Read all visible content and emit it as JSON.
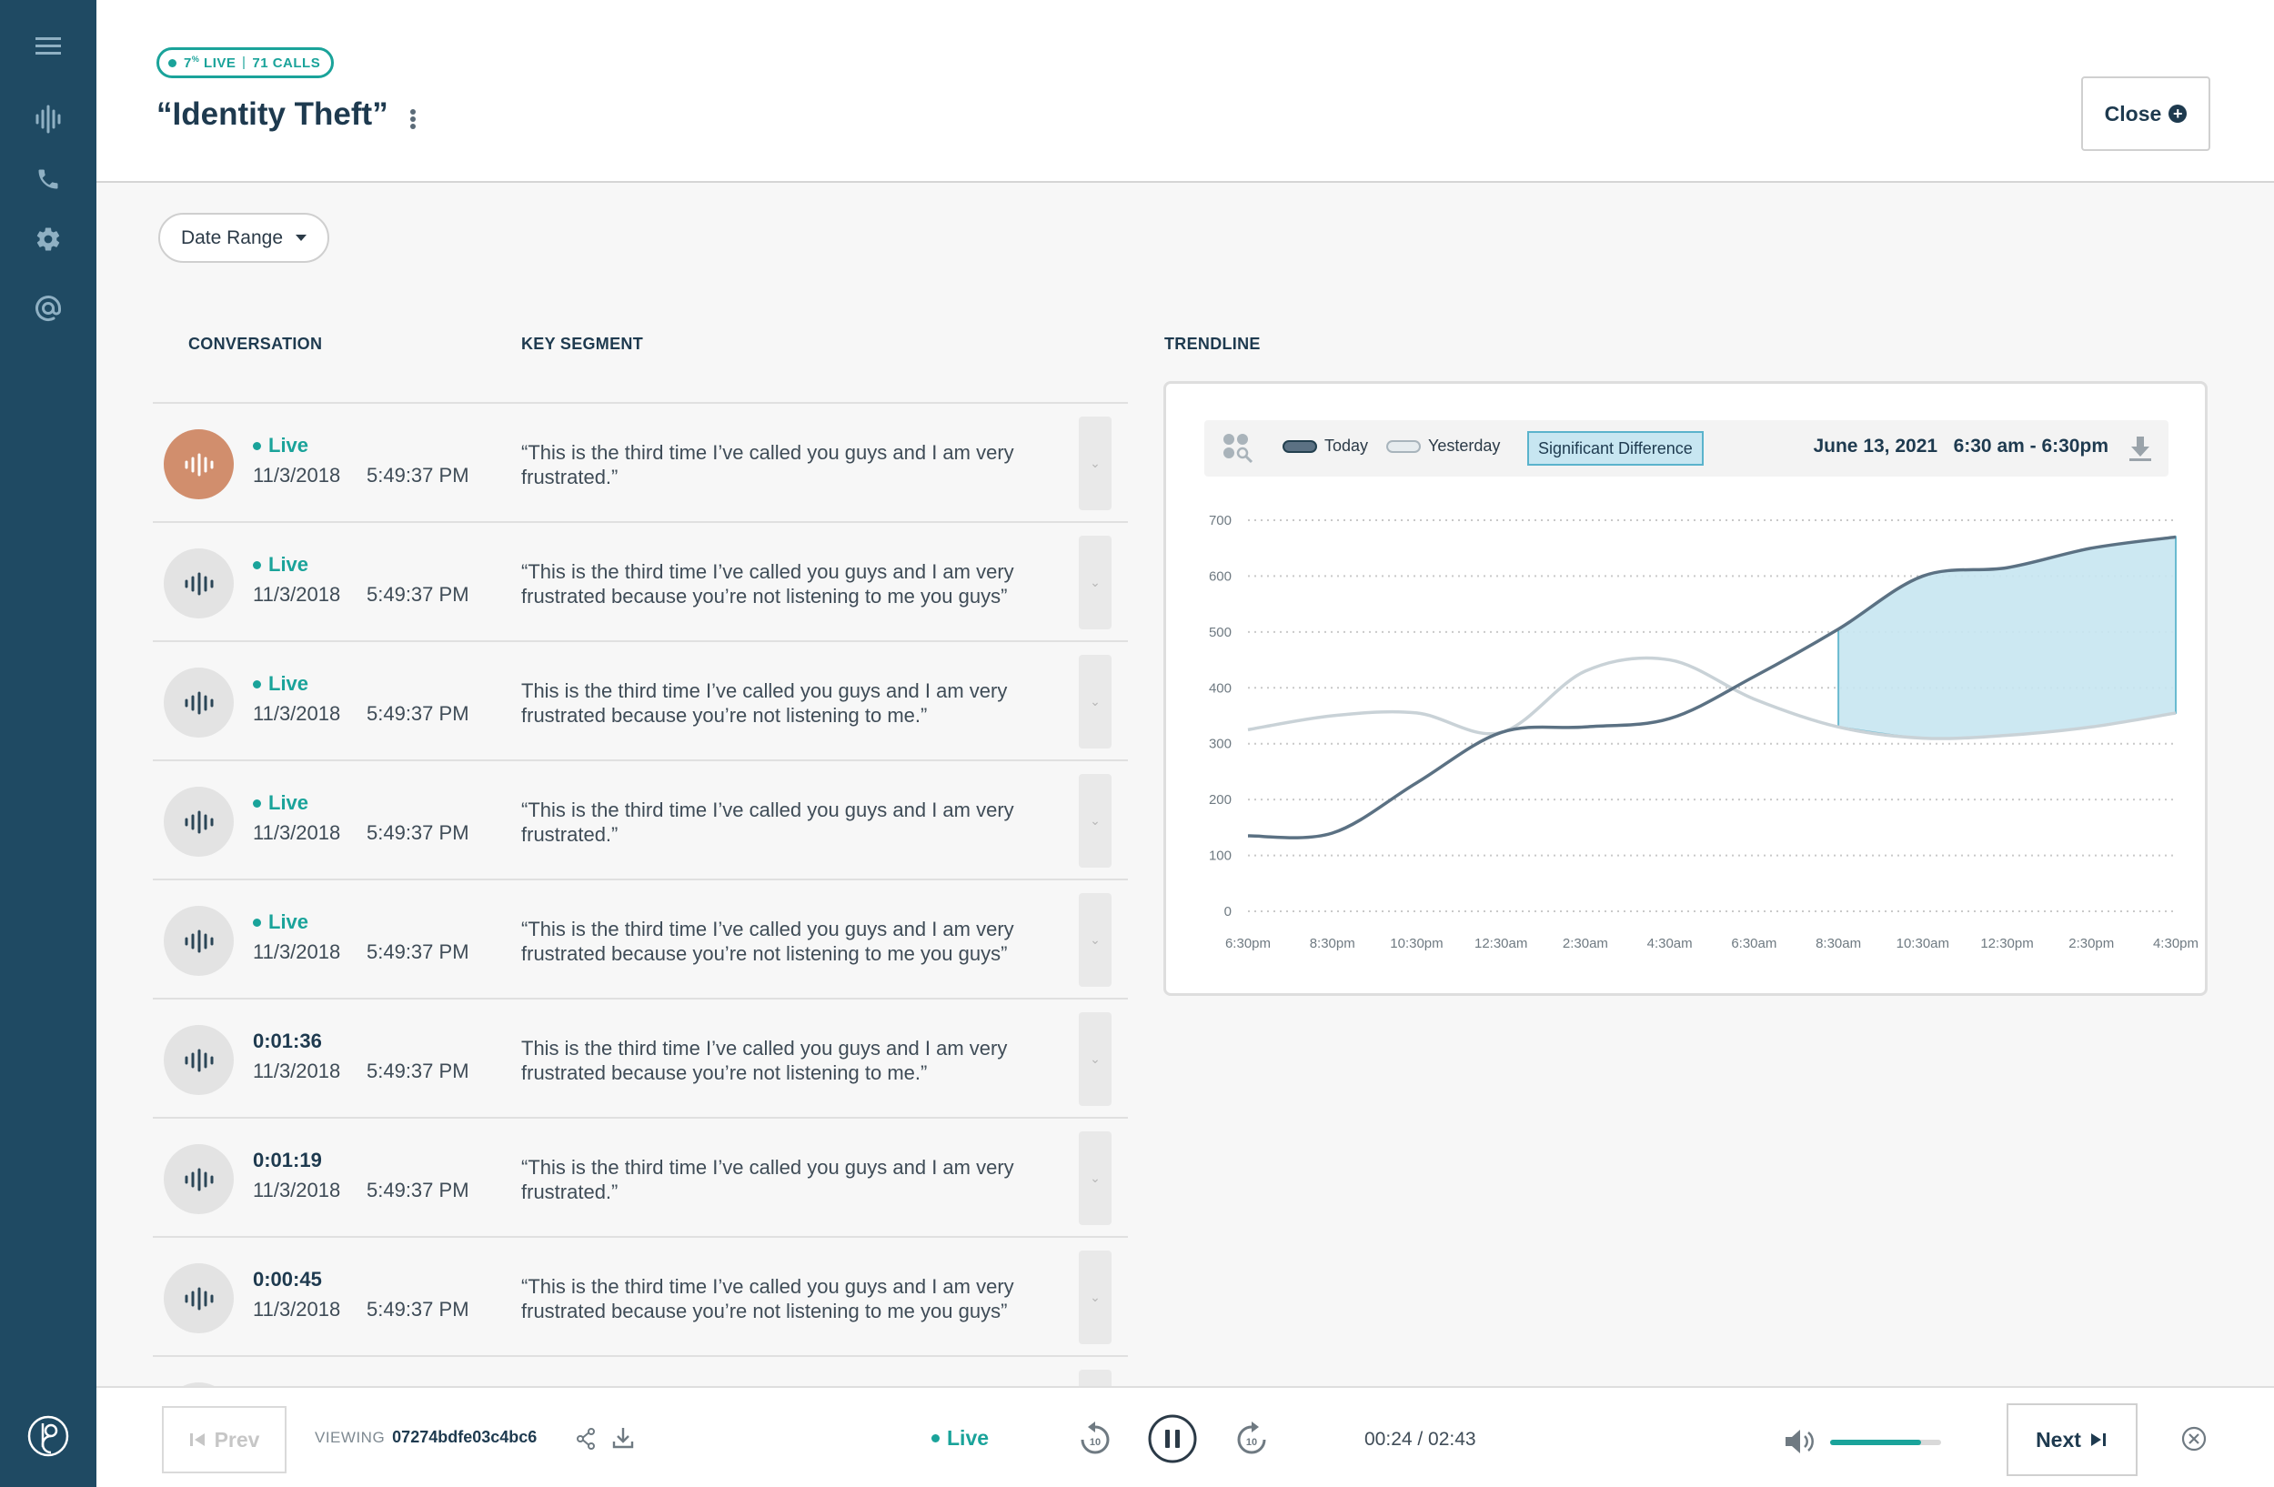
{
  "header": {
    "badge_live": "7",
    "badge_live_sup": "%",
    "badge_live_label": "LIVE",
    "badge_calls": "71 CALLS",
    "title": "“Identity Theft”",
    "close_label": "Close"
  },
  "filters": {
    "date_range_label": "Date Range"
  },
  "columns": {
    "conversation": "CONVERSATION",
    "key_segment": "KEY SEGMENT",
    "trendline": "TRENDLINE"
  },
  "conversations": [
    {
      "status": "Live",
      "is_live": true,
      "date": "11/3/2018",
      "time": "5:49:37 PM",
      "segment": "“This is the third time I’ve called you guys and I am very frustrated.”",
      "active": true
    },
    {
      "status": "Live",
      "is_live": true,
      "date": "11/3/2018",
      "time": "5:49:37 PM",
      "segment": "“This is the third time I’ve called you guys and I am very frustrated because you’re not listening to me you guys”",
      "active": false
    },
    {
      "status": "Live",
      "is_live": true,
      "date": "11/3/2018",
      "time": "5:49:37 PM",
      "segment": "This is the third time I’ve called you guys and I am very frustrated because you’re not listening to me.”",
      "active": false
    },
    {
      "status": "Live",
      "is_live": true,
      "date": "11/3/2018",
      "time": "5:49:37 PM",
      "segment": "“This is the third time I’ve called you guys and I am very frustrated.”",
      "active": false
    },
    {
      "status": "Live",
      "is_live": true,
      "date": "11/3/2018",
      "time": "5:49:37 PM",
      "segment": "“This is the third time I’ve called you guys and I am very frustrated because you’re not listening to me you guys”",
      "active": false
    },
    {
      "status": "0:01:36",
      "is_live": false,
      "date": "11/3/2018",
      "time": "5:49:37 PM",
      "segment": "This is the third time I’ve called you guys and I am very frustrated because you’re not listening to me.”",
      "active": false
    },
    {
      "status": "0:01:19",
      "is_live": false,
      "date": "11/3/2018",
      "time": "5:49:37 PM",
      "segment": "“This is the third time I’ve called you guys and I am very frustrated.”",
      "active": false
    },
    {
      "status": "0:00:45",
      "is_live": false,
      "date": "11/3/2018",
      "time": "5:49:37 PM",
      "segment": "“This is the third time I’ve called you guys and I am very frustrated because you’re not listening to me you guys”",
      "active": false
    }
  ],
  "trend": {
    "legend_today": "Today",
    "legend_yesterday": "Yesterday",
    "legend_sig": "Significant Difference",
    "date": "June 13, 2021",
    "time_range": "6:30 am - 6:30pm",
    "colors": {
      "today": "#5b7183",
      "yesterday": "#c9d2d7",
      "significant": "#c7e6f1",
      "significant_stroke": "#5ab3cc"
    }
  },
  "chart_data": {
    "type": "line",
    "x": [
      "6:30pm",
      "8:30pm",
      "10:30pm",
      "12:30am",
      "2:30am",
      "4:30am",
      "6:30am",
      "8:30am",
      "10:30am",
      "12:30pm",
      "2:30pm",
      "4:30pm"
    ],
    "yticks": [
      0,
      100,
      200,
      300,
      400,
      500,
      600,
      700
    ],
    "grid": true,
    "series": [
      {
        "name": "Today",
        "values": [
          135,
          140,
          230,
          320,
          330,
          345,
          420,
          505,
          600,
          615,
          650,
          670
        ]
      },
      {
        "name": "Yesterday",
        "values": [
          325,
          350,
          355,
          320,
          430,
          450,
          380,
          330,
          310,
          315,
          330,
          355
        ]
      }
    ],
    "significant_difference": {
      "x_from": "8:30am",
      "x_to": "4:30pm"
    }
  },
  "player": {
    "prev_label": "Prev",
    "viewing_label": "VIEWING",
    "viewing_id": "07274bdfe03c4bc6",
    "live_label": "Live",
    "time": "00:24 / 02:43",
    "volume": 0.82,
    "next_label": "Next"
  }
}
